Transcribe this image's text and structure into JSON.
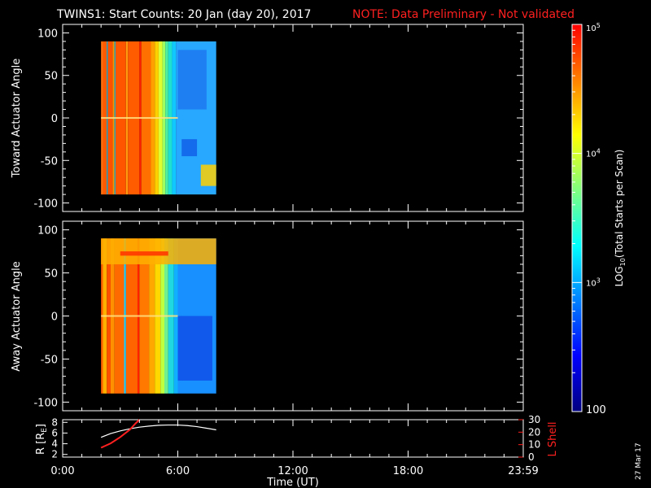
{
  "title": {
    "main": "TWINS1: Start Counts: 20 Jan (day  20), 2017",
    "note": "NOTE: Data Preliminary - Not validated"
  },
  "date_stamp": "27 Mar 17",
  "colors": {
    "background": "#000000",
    "axes": "#ffffff",
    "note": "#ff2020",
    "lshell": "#ff2020",
    "radius": "#ffffff"
  },
  "chart_data": [
    {
      "type": "heatmap",
      "ylabel": "Toward Actuator Angle",
      "ylim": [
        -110,
        110
      ],
      "yticks": [
        "100",
        "50",
        "0",
        "-50",
        "-100"
      ],
      "xlim": [
        0,
        24
      ],
      "data_extent": {
        "x": [
          2.0,
          8.0
        ],
        "y": [
          -90,
          90
        ]
      },
      "columns": [
        {
          "x0": 2.0,
          "x1": 2.1,
          "color": "#ff7010"
        },
        {
          "x0": 2.1,
          "x1": 2.3,
          "color": "#ff5a00"
        },
        {
          "x0": 2.3,
          "x1": 2.35,
          "color": "#00c8ff"
        },
        {
          "x0": 2.35,
          "x1": 2.6,
          "color": "#ff5000"
        },
        {
          "x0": 2.6,
          "x1": 2.7,
          "color": "#ff8c00"
        },
        {
          "x0": 2.7,
          "x1": 2.75,
          "color": "#00d0ff"
        },
        {
          "x0": 2.75,
          "x1": 3.3,
          "color": "#ff5400"
        },
        {
          "x0": 3.3,
          "x1": 3.4,
          "color": "#ff9a10"
        },
        {
          "x0": 3.4,
          "x1": 4.0,
          "color": "#ff5c00"
        },
        {
          "x0": 4.0,
          "x1": 4.1,
          "color": "#ff2000"
        },
        {
          "x0": 4.1,
          "x1": 4.6,
          "color": "#ff7000"
        },
        {
          "x0": 4.6,
          "x1": 4.8,
          "color": "#ffa000"
        },
        {
          "x0": 4.8,
          "x1": 5.0,
          "color": "#ffd000"
        },
        {
          "x0": 5.0,
          "x1": 5.2,
          "color": "#e0ff30"
        },
        {
          "x0": 5.2,
          "x1": 5.35,
          "color": "#a0ff60"
        },
        {
          "x0": 5.35,
          "x1": 5.5,
          "color": "#50f0a0"
        },
        {
          "x0": 5.5,
          "x1": 5.7,
          "color": "#20e0d0"
        },
        {
          "x0": 5.7,
          "x1": 5.9,
          "color": "#10c8ff"
        },
        {
          "x0": 5.9,
          "x1": 8.0,
          "color": "#28a8ff"
        }
      ],
      "patches": [
        {
          "x0": 6.0,
          "x1": 7.5,
          "y0": 80,
          "y1": 10,
          "color": "#1c78f0"
        },
        {
          "x0": 6.2,
          "x1": 7.0,
          "y0": -25,
          "y1": -45,
          "color": "#1060e8"
        },
        {
          "x0": 7.2,
          "x1": 8.0,
          "y0": -55,
          "y1": -80,
          "color": "#ffd000"
        },
        {
          "x0": 2.0,
          "x1": 6.0,
          "y0": 1,
          "y1": -1,
          "color": "#ffe080"
        }
      ]
    },
    {
      "type": "heatmap",
      "ylabel": "Away Actuator Angle",
      "ylim": [
        -110,
        110
      ],
      "yticks": [
        "100",
        "50",
        "0",
        "-50",
        "-100"
      ],
      "xlim": [
        0,
        24
      ],
      "data_extent": {
        "x": [
          2.0,
          8.0
        ],
        "y": [
          -90,
          90
        ]
      },
      "columns": [
        {
          "x0": 2.0,
          "x1": 2.1,
          "color": "#ff6000"
        },
        {
          "x0": 2.1,
          "x1": 2.3,
          "color": "#ffb000"
        },
        {
          "x0": 2.3,
          "x1": 2.5,
          "color": "#ff5000"
        },
        {
          "x0": 2.5,
          "x1": 2.7,
          "color": "#ff9000"
        },
        {
          "x0": 2.7,
          "x1": 3.2,
          "color": "#ff6a00"
        },
        {
          "x0": 3.2,
          "x1": 3.3,
          "color": "#20d0ff"
        },
        {
          "x0": 3.3,
          "x1": 3.9,
          "color": "#ff6400"
        },
        {
          "x0": 3.9,
          "x1": 4.0,
          "color": "#ff2000"
        },
        {
          "x0": 4.0,
          "x1": 4.5,
          "color": "#ff7800"
        },
        {
          "x0": 4.5,
          "x1": 4.8,
          "color": "#ffa800"
        },
        {
          "x0": 4.8,
          "x1": 5.1,
          "color": "#ffd800"
        },
        {
          "x0": 5.1,
          "x1": 5.3,
          "color": "#c0ff40"
        },
        {
          "x0": 5.3,
          "x1": 5.5,
          "color": "#70f090"
        },
        {
          "x0": 5.5,
          "x1": 5.8,
          "color": "#20d8e0"
        },
        {
          "x0": 5.8,
          "x1": 6.0,
          "color": "#10b0ff"
        },
        {
          "x0": 6.0,
          "x1": 8.0,
          "color": "#1890ff"
        }
      ],
      "patches": [
        {
          "x0": 6.0,
          "x1": 7.8,
          "y0": 0,
          "y1": -75,
          "color": "#1050e8"
        },
        {
          "x0": 2.0,
          "x1": 8.0,
          "y0": 90,
          "y1": 60,
          "color": "#ffb000"
        },
        {
          "x0": 3.0,
          "x1": 5.5,
          "y0": 75,
          "y1": 70,
          "color": "#ff3000"
        },
        {
          "x0": 2.0,
          "x1": 6.0,
          "y0": 1,
          "y1": -1,
          "color": "#ffe080"
        }
      ]
    },
    {
      "type": "line",
      "ylabel": "R [RE]",
      "y2label": "L Shell",
      "ylim": [
        1.5,
        8.5
      ],
      "yticks": [
        "8",
        "6",
        "4",
        "2"
      ],
      "y2lim": [
        0,
        30
      ],
      "y2ticks": [
        "30",
        "20",
        "10",
        "0"
      ],
      "xlim": [
        0,
        24
      ],
      "xticks": [
        "0:00",
        "6:00",
        "12:00",
        "18:00",
        "23:59"
      ],
      "xlabel": "Time (UT)",
      "series": [
        {
          "axis": "left",
          "color": "#ffffff",
          "x": [
            2.0,
            2.5,
            3.0,
            3.5,
            4.0,
            4.5,
            5.0,
            5.5,
            6.0,
            6.5,
            7.0,
            7.5,
            8.0
          ],
          "y": [
            5.2,
            5.9,
            6.4,
            6.8,
            7.1,
            7.3,
            7.45,
            7.5,
            7.5,
            7.4,
            7.2,
            6.9,
            6.6
          ]
        },
        {
          "axis": "right",
          "color": "#ff2020",
          "x": [
            2.0,
            2.5,
            3.0,
            3.5,
            3.8,
            4.0
          ],
          "y": [
            7.5,
            11,
            16,
            22,
            27,
            30
          ]
        }
      ]
    }
  ],
  "colorbar": {
    "label": "LOG10(Total Starts per Scan)",
    "ticks": [
      "10^5",
      "10^4",
      "10^3",
      "100"
    ],
    "stops": [
      "#000080",
      "#0000ff",
      "#0080ff",
      "#00ffff",
      "#80ff80",
      "#ffff00",
      "#ff8000",
      "#ff0000"
    ]
  }
}
